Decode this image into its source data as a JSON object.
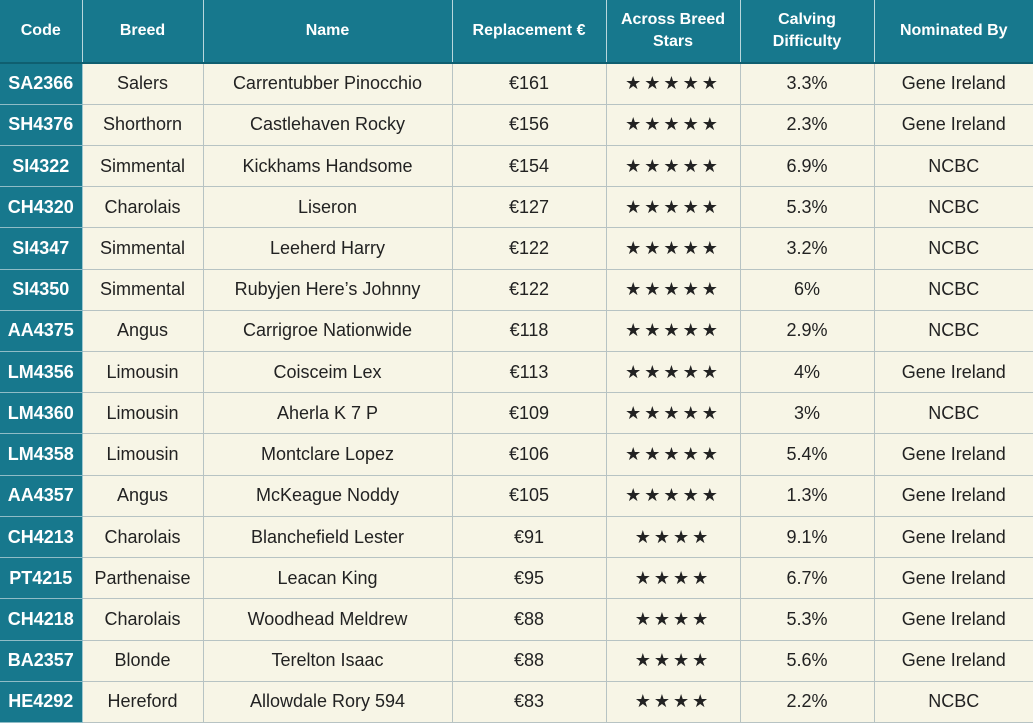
{
  "headers": {
    "code": "Code",
    "breed": "Breed",
    "name": "Name",
    "replacement": "Replacement €",
    "stars": "Across Breed Stars",
    "calving": "Calving Difficulty",
    "nominated": "Nominated By"
  },
  "colors": {
    "header": "#17788d",
    "body": "#f7f5e6"
  },
  "rows": [
    {
      "code": "SA2366",
      "breed": "Salers",
      "name": "Carrentubber Pinocchio",
      "replacement": "€161",
      "stars": "★★★★★",
      "calving": "3.3%",
      "nominated": "Gene Ireland"
    },
    {
      "code": "SH4376",
      "breed": "Shorthorn",
      "name": "Castlehaven Rocky",
      "replacement": "€156",
      "stars": "★★★★★",
      "calving": "2.3%",
      "nominated": "Gene Ireland"
    },
    {
      "code": "SI4322",
      "breed": "Simmental",
      "name": "Kickhams Handsome",
      "replacement": "€154",
      "stars": "★★★★★",
      "calving": "6.9%",
      "nominated": "NCBC"
    },
    {
      "code": "CH4320",
      "breed": "Charolais",
      "name": "Liseron",
      "replacement": "€127",
      "stars": "★★★★★",
      "calving": "5.3%",
      "nominated": "NCBC"
    },
    {
      "code": "SI4347",
      "breed": "Simmental",
      "name": "Leeherd Harry",
      "replacement": "€122",
      "stars": "★★★★★",
      "calving": "3.2%",
      "nominated": "NCBC"
    },
    {
      "code": "SI4350",
      "breed": "Simmental",
      "name": "Rubyjen Here’s Johnny",
      "replacement": "€122",
      "stars": "★★★★★",
      "calving": "6%",
      "nominated": "NCBC"
    },
    {
      "code": "AA4375",
      "breed": "Angus",
      "name": "Carrigroe Nationwide",
      "replacement": "€118",
      "stars": "★★★★★",
      "calving": "2.9%",
      "nominated": "NCBC"
    },
    {
      "code": "LM4356",
      "breed": "Limousin",
      "name": "Coisceim Lex",
      "replacement": "€113",
      "stars": "★★★★★",
      "calving": "4%",
      "nominated": "Gene Ireland"
    },
    {
      "code": "LM4360",
      "breed": "Limousin",
      "name": "Aherla K 7 P",
      "replacement": "€109",
      "stars": "★★★★★",
      "calving": "3%",
      "nominated": "NCBC"
    },
    {
      "code": "LM4358",
      "breed": "Limousin",
      "name": "Montclare Lopez",
      "replacement": "€106",
      "stars": "★★★★★",
      "calving": "5.4%",
      "nominated": "Gene Ireland"
    },
    {
      "code": "AA4357",
      "breed": "Angus",
      "name": "McKeague Noddy",
      "replacement": "€105",
      "stars": "★★★★★",
      "calving": "1.3%",
      "nominated": "Gene Ireland"
    },
    {
      "code": "CH4213",
      "breed": "Charolais",
      "name": "Blanchefield Lester",
      "replacement": "€91",
      "stars": "★★★★",
      "calving": "9.1%",
      "nominated": "Gene Ireland"
    },
    {
      "code": "PT4215",
      "breed": "Parthenaise",
      "name": "Leacan King",
      "replacement": "€95",
      "stars": "★★★★",
      "calving": "6.7%",
      "nominated": "Gene Ireland"
    },
    {
      "code": "CH4218",
      "breed": "Charolais",
      "name": "Woodhead Meldrew",
      "replacement": "€88",
      "stars": "★★★★",
      "calving": "5.3%",
      "nominated": "Gene Ireland"
    },
    {
      "code": "BA2357",
      "breed": "Blonde",
      "name": "Terelton Isaac",
      "replacement": "€88",
      "stars": "★★★★",
      "calving": "5.6%",
      "nominated": "Gene Ireland"
    },
    {
      "code": "HE4292",
      "breed": "Hereford",
      "name": "Allowdale Rory 594",
      "replacement": "€83",
      "stars": "★★★★",
      "calving": "2.2%",
      "nominated": "NCBC"
    }
  ]
}
